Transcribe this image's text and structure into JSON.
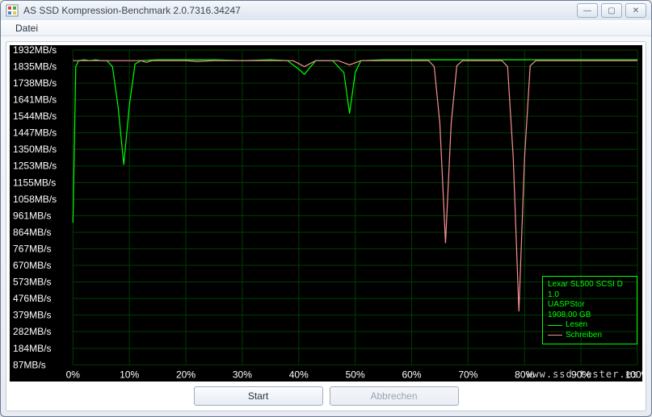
{
  "window": {
    "title": "AS SSD Kompression-Benchmark 2.0.7316.34247"
  },
  "menu": {
    "file": "Datei"
  },
  "buttons": {
    "start": "Start",
    "cancel": "Abbrechen"
  },
  "watermark": "www.ssd-tester.es",
  "device": {
    "name": "Lexar SL500 SCSI D",
    "firmware": "1.0",
    "driver": "UASPStor",
    "capacity": "1908,00 GB"
  },
  "legend": {
    "read": "Lesen",
    "write": "Schreiben"
  },
  "chart": {
    "type": "line",
    "background_color": "#000000",
    "grid_color": "#003c00",
    "axis_text_color": "#ffffff",
    "axis_fontsize": 12,
    "read_color": "#00ff00",
    "write_color": "#f89090",
    "line_width": 1.2,
    "x_unit": "%",
    "y_unit": "MB/s",
    "xlim": [
      0,
      100
    ],
    "ylim": [
      87,
      1932
    ],
    "y_ticks": [
      1932,
      1835,
      1738,
      1641,
      1544,
      1447,
      1350,
      1253,
      1155,
      1058,
      961,
      864,
      767,
      670,
      573,
      476,
      379,
      282,
      184,
      87
    ],
    "x_ticks": [
      0,
      10,
      20,
      30,
      40,
      50,
      60,
      70,
      80,
      90,
      100
    ],
    "read_series": [
      [
        0,
        920
      ],
      [
        0.5,
        1835
      ],
      [
        1,
        1870
      ],
      [
        2,
        1875
      ],
      [
        3,
        1870
      ],
      [
        4,
        1875
      ],
      [
        5,
        1870
      ],
      [
        6,
        1870
      ],
      [
        7,
        1835
      ],
      [
        8,
        1600
      ],
      [
        9,
        1260
      ],
      [
        10,
        1610
      ],
      [
        11,
        1850
      ],
      [
        12,
        1870
      ],
      [
        15,
        1875
      ],
      [
        20,
        1875
      ],
      [
        25,
        1875
      ],
      [
        30,
        1870
      ],
      [
        35,
        1875
      ],
      [
        38,
        1870
      ],
      [
        40,
        1820
      ],
      [
        41,
        1790
      ],
      [
        42,
        1830
      ],
      [
        43,
        1870
      ],
      [
        46,
        1870
      ],
      [
        48,
        1800
      ],
      [
        49,
        1560
      ],
      [
        50,
        1800
      ],
      [
        51,
        1870
      ],
      [
        55,
        1875
      ],
      [
        60,
        1875
      ],
      [
        65,
        1875
      ],
      [
        70,
        1875
      ],
      [
        75,
        1875
      ],
      [
        80,
        1875
      ],
      [
        85,
        1875
      ],
      [
        90,
        1875
      ],
      [
        95,
        1875
      ],
      [
        100,
        1875
      ]
    ],
    "write_series": [
      [
        0,
        1870
      ],
      [
        5,
        1870
      ],
      [
        10,
        1870
      ],
      [
        12,
        1870
      ],
      [
        13,
        1860
      ],
      [
        14,
        1870
      ],
      [
        20,
        1870
      ],
      [
        22,
        1865
      ],
      [
        25,
        1870
      ],
      [
        30,
        1870
      ],
      [
        35,
        1870
      ],
      [
        39,
        1870
      ],
      [
        41,
        1835
      ],
      [
        43,
        1870
      ],
      [
        47,
        1870
      ],
      [
        49,
        1845
      ],
      [
        51,
        1870
      ],
      [
        55,
        1870
      ],
      [
        60,
        1870
      ],
      [
        63,
        1870
      ],
      [
        64,
        1835
      ],
      [
        65,
        1500
      ],
      [
        66,
        800
      ],
      [
        67,
        1500
      ],
      [
        68,
        1840
      ],
      [
        69,
        1870
      ],
      [
        73,
        1870
      ],
      [
        76,
        1870
      ],
      [
        77,
        1835
      ],
      [
        78,
        1300
      ],
      [
        79,
        400
      ],
      [
        80,
        1300
      ],
      [
        81,
        1840
      ],
      [
        82,
        1870
      ],
      [
        85,
        1870
      ],
      [
        90,
        1870
      ],
      [
        95,
        1870
      ],
      [
        100,
        1870
      ]
    ]
  }
}
